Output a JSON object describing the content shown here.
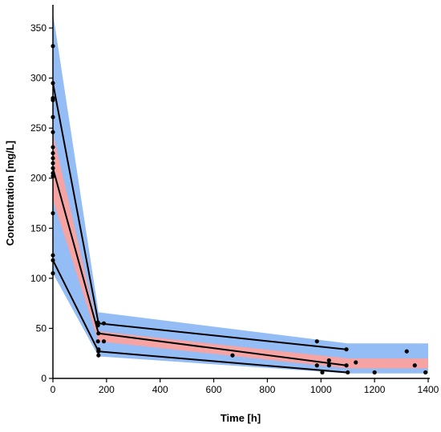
{
  "chart_data": {
    "type": "line",
    "title": "",
    "xlabel": "Time [h]",
    "ylabel": "Concentration [mg/L]",
    "xlim": [
      0,
      1400
    ],
    "ylim": [
      0,
      370
    ],
    "x_ticks": [
      "0",
      "200",
      "400",
      "600",
      "800",
      "1000",
      "1200",
      "1400"
    ],
    "y_ticks": [
      "0",
      "50",
      "100",
      "150",
      "200",
      "250",
      "300",
      "350"
    ],
    "grid": false,
    "legend": "none",
    "colors": {
      "outer_band": "#94bdf5",
      "inner_band": "#f5a3a3",
      "lines": "#000000",
      "points": "#000000"
    },
    "bands": [
      {
        "kind": "outer",
        "x": [
          0,
          170,
          1100,
          1400
        ],
        "upper": [
          365,
          66,
          35,
          35
        ],
        "lower": [
          105,
          22,
          5,
          5
        ]
      },
      {
        "kind": "inner",
        "x": [
          0,
          170,
          1100,
          1400
        ],
        "upper": [
          245,
          47,
          20,
          20
        ],
        "lower": [
          178,
          37,
          10,
          10
        ]
      }
    ],
    "lines": [
      {
        "x": [
          0,
          170,
          1095
        ],
        "y": [
          295,
          55,
          29
        ]
      },
      {
        "x": [
          0,
          170,
          1095
        ],
        "y": [
          210,
          45,
          13
        ]
      },
      {
        "x": [
          0,
          170,
          1095
        ],
        "y": [
          118,
          27,
          6
        ]
      }
    ],
    "points": [
      {
        "x": 0,
        "y": 332
      },
      {
        "x": 0,
        "y": 295
      },
      {
        "x": 0,
        "y": 280
      },
      {
        "x": 0,
        "y": 278
      },
      {
        "x": 0,
        "y": 261
      },
      {
        "x": 0,
        "y": 246
      },
      {
        "x": 0,
        "y": 231
      },
      {
        "x": 0,
        "y": 225
      },
      {
        "x": 0,
        "y": 220
      },
      {
        "x": 0,
        "y": 215
      },
      {
        "x": 0,
        "y": 210
      },
      {
        "x": 0,
        "y": 205
      },
      {
        "x": 0,
        "y": 202
      },
      {
        "x": 0,
        "y": 165
      },
      {
        "x": 0,
        "y": 123
      },
      {
        "x": 0,
        "y": 118
      },
      {
        "x": 0,
        "y": 105
      },
      {
        "x": 168,
        "y": 56
      },
      {
        "x": 168,
        "y": 53
      },
      {
        "x": 170,
        "y": 45
      },
      {
        "x": 168,
        "y": 37
      },
      {
        "x": 170,
        "y": 29
      },
      {
        "x": 170,
        "y": 27
      },
      {
        "x": 170,
        "y": 23
      },
      {
        "x": 190,
        "y": 55
      },
      {
        "x": 190,
        "y": 37
      },
      {
        "x": 670,
        "y": 23
      },
      {
        "x": 985,
        "y": 37
      },
      {
        "x": 985,
        "y": 13
      },
      {
        "x": 1005,
        "y": 6
      },
      {
        "x": 1030,
        "y": 18
      },
      {
        "x": 1030,
        "y": 13
      },
      {
        "x": 1095,
        "y": 29
      },
      {
        "x": 1095,
        "y": 13
      },
      {
        "x": 1100,
        "y": 6
      },
      {
        "x": 1130,
        "y": 16
      },
      {
        "x": 1200,
        "y": 6
      },
      {
        "x": 1320,
        "y": 27
      },
      {
        "x": 1350,
        "y": 13
      },
      {
        "x": 1390,
        "y": 6
      }
    ]
  }
}
